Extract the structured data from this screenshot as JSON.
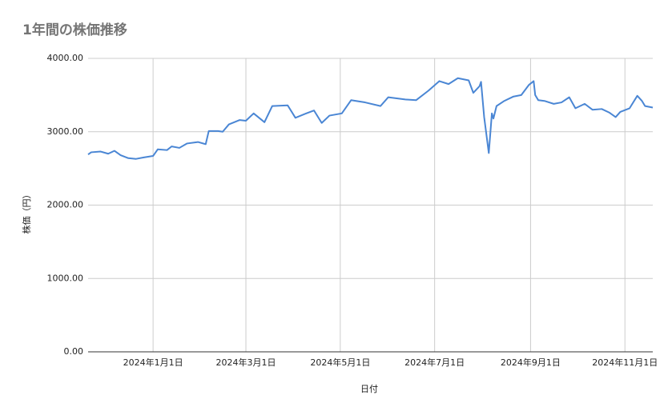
{
  "chart_data": {
    "type": "line",
    "title": "1年間の株価推移",
    "x_label": "日付",
    "y_label": "株価（円）",
    "color": "#4a86d4",
    "x": [
      "2023-11-20",
      "2023-11-22",
      "2023-11-28",
      "2023-12-03",
      "2023-12-07",
      "2023-12-11",
      "2023-12-16",
      "2023-12-21",
      "2023-12-26",
      "2024-01-01",
      "2024-01-04",
      "2024-01-10",
      "2024-01-13",
      "2024-01-18",
      "2024-01-23",
      "2024-01-30",
      "2024-02-04",
      "2024-02-06",
      "2024-02-12",
      "2024-02-15",
      "2024-02-19",
      "2024-02-26",
      "2024-03-01",
      "2024-03-06",
      "2024-03-13",
      "2024-03-18",
      "2024-03-28",
      "2024-04-02",
      "2024-04-09",
      "2024-04-14",
      "2024-04-19",
      "2024-04-24",
      "2024-05-02",
      "2024-05-08",
      "2024-05-17",
      "2024-05-27",
      "2024-06-01",
      "2024-06-12",
      "2024-06-19",
      "2024-06-27",
      "2024-07-04",
      "2024-07-10",
      "2024-07-16",
      "2024-07-23",
      "2024-07-26",
      "2024-07-30",
      "2024-07-31",
      "2024-08-02",
      "2024-08-05",
      "2024-08-07",
      "2024-08-08",
      "2024-08-10",
      "2024-08-15",
      "2024-08-21",
      "2024-08-26",
      "2024-08-31",
      "2024-09-03",
      "2024-09-04",
      "2024-09-06",
      "2024-09-10",
      "2024-09-16",
      "2024-09-21",
      "2024-09-26",
      "2024-09-30",
      "2024-10-06",
      "2024-10-11",
      "2024-10-17",
      "2024-10-22",
      "2024-10-26",
      "2024-10-29",
      "2024-11-04",
      "2024-11-09",
      "2024-11-12",
      "2024-11-14",
      "2024-11-19"
    ],
    "values": [
      2690,
      2720,
      2730,
      2700,
      2740,
      2680,
      2640,
      2630,
      2650,
      2670,
      2760,
      2750,
      2800,
      2780,
      2840,
      2860,
      2830,
      3010,
      3010,
      3000,
      3100,
      3160,
      3150,
      3250,
      3130,
      3350,
      3360,
      3190,
      3250,
      3290,
      3120,
      3220,
      3250,
      3430,
      3400,
      3350,
      3470,
      3440,
      3430,
      3560,
      3690,
      3650,
      3730,
      3700,
      3530,
      3620,
      3680,
      3200,
      2710,
      3250,
      3180,
      3350,
      3420,
      3480,
      3500,
      3640,
      3690,
      3500,
      3430,
      3420,
      3380,
      3400,
      3470,
      3320,
      3380,
      3300,
      3310,
      3260,
      3200,
      3270,
      3320,
      3490,
      3420,
      3350,
      3330
    ],
    "xlim": [
      "2023-11-20",
      "2024-11-19"
    ],
    "xticks": [
      {
        "value": "2024-01-01",
        "label": "2024年1月1日"
      },
      {
        "value": "2024-03-01",
        "label": "2024年3月1日"
      },
      {
        "value": "2024-05-01",
        "label": "2024年5月1日"
      },
      {
        "value": "2024-07-01",
        "label": "2024年7月1日"
      },
      {
        "value": "2024-09-01",
        "label": "2024年9月1日"
      },
      {
        "value": "2024-11-01",
        "label": "2024年11月1日"
      }
    ],
    "ylim": [
      0,
      4000
    ],
    "yticks": [
      {
        "value": 0,
        "label": "0.00"
      },
      {
        "value": 1000,
        "label": "1000.00"
      },
      {
        "value": 2000,
        "label": "2000.00"
      },
      {
        "value": 3000,
        "label": "3000.00"
      },
      {
        "value": 4000,
        "label": "4000.00"
      }
    ],
    "grid": true
  }
}
